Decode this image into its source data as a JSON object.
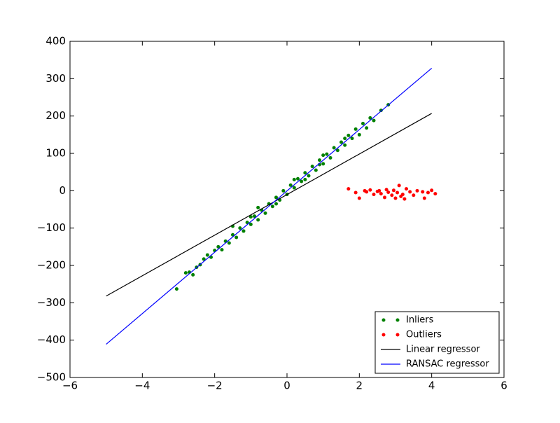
{
  "chart_data": {
    "type": "scatter",
    "xlim": [
      -6,
      6
    ],
    "ylim": [
      -500,
      400
    ],
    "xticks": [
      {
        "value": -6,
        "label": "−6"
      },
      {
        "value": -4,
        "label": "−4"
      },
      {
        "value": -2,
        "label": "−2"
      },
      0,
      2,
      4,
      6
    ],
    "yticks": [
      {
        "value": -500,
        "label": "−500"
      },
      {
        "value": -400,
        "label": "−400"
      },
      {
        "value": -300,
        "label": "−300"
      },
      {
        "value": -200,
        "label": "−200"
      },
      {
        "value": -100,
        "label": "−100"
      },
      0,
      100,
      200,
      300,
      400
    ],
    "grid": false,
    "legend": "lower right",
    "series": [
      {
        "name": "Inliers",
        "color": "#008000",
        "mode": "markers",
        "x": [
          -3.05,
          -2.8,
          -2.7,
          -2.6,
          -2.5,
          -2.4,
          -2.3,
          -2.2,
          -2.1,
          -2.0,
          -1.9,
          -1.8,
          -1.7,
          -1.6,
          -1.5,
          -1.4,
          -1.3,
          -1.2,
          -1.1,
          -1.0,
          -0.9,
          -0.8,
          -0.7,
          -0.6,
          -0.5,
          -0.4,
          -0.3,
          -0.2,
          -0.1,
          0,
          0.1,
          0.2,
          0.3,
          0.4,
          0.5,
          0.6,
          0.7,
          0.8,
          0.9,
          1.0,
          1.1,
          1.2,
          1.3,
          1.4,
          1.5,
          1.6,
          1.7,
          1.8,
          1.9,
          2.0,
          2.1,
          2.2,
          2.3,
          2.4,
          2.6,
          2.8,
          -1.5,
          -0.8,
          0.2,
          1.0,
          1.6,
          -1.0,
          0.5,
          -0.3,
          0.9
        ],
        "values": [
          -263,
          -220,
          -218,
          -225,
          -205,
          -198,
          -183,
          -172,
          -178,
          -160,
          -150,
          -158,
          -135,
          -140,
          -118,
          -125,
          -100,
          -108,
          -85,
          -90,
          -68,
          -78,
          -52,
          -60,
          -35,
          -42,
          -18,
          -25,
          0,
          -10,
          15,
          8,
          32,
          25,
          48,
          40,
          65,
          55,
          82,
          72,
          98,
          88,
          115,
          108,
          130,
          122,
          148,
          140,
          165,
          150,
          180,
          168,
          195,
          188,
          215,
          230,
          -95,
          -45,
          30,
          95,
          140,
          -70,
          30,
          -35,
          70
        ]
      },
      {
        "name": "Outliers",
        "color": "#ff0000",
        "mode": "markers",
        "x": [
          1.7,
          1.9,
          2.0,
          2.15,
          2.2,
          2.3,
          2.4,
          2.5,
          2.55,
          2.6,
          2.7,
          2.75,
          2.8,
          2.9,
          2.95,
          3.0,
          3.05,
          3.1,
          3.15,
          3.2,
          3.3,
          3.4,
          3.5,
          3.6,
          3.75,
          3.8,
          3.9,
          4.0,
          4.1,
          3.25
        ],
        "values": [
          5,
          -5,
          -20,
          0,
          -3,
          2,
          -10,
          -2,
          0,
          -8,
          -18,
          3,
          -4,
          -12,
          1,
          -20,
          -5,
          14,
          -15,
          -10,
          5,
          -3,
          -12,
          0,
          -3,
          -20,
          -5,
          1,
          -8,
          -22
        ]
      },
      {
        "name": "Linear regressor",
        "color": "#000000",
        "mode": "line",
        "x": [
          -5,
          4
        ],
        "values": [
          -282,
          207
        ]
      },
      {
        "name": "RANSAC regressor",
        "color": "#0000ff",
        "mode": "line",
        "x": [
          -5,
          4
        ],
        "values": [
          -411,
          328
        ]
      }
    ]
  }
}
